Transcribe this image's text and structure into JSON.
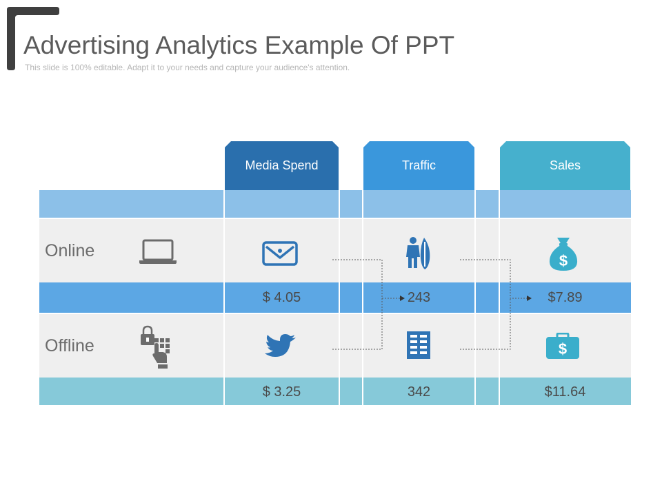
{
  "slide": {
    "title": "Advertising Analytics Example Of PPT",
    "subtitle": "This slide is 100% editable. Adapt it to your needs and capture your audience's attention."
  },
  "columns": {
    "media_spend": "Media Spend",
    "traffic": "Traffic",
    "sales": "Sales"
  },
  "rows": {
    "online": {
      "label": "Online",
      "media_spend": "$ 4.05",
      "traffic": "243",
      "sales": "$7.89"
    },
    "offline": {
      "label": "Offline",
      "media_spend": "$ 3.25",
      "traffic": "342",
      "sales": "$11.64"
    }
  },
  "colors": {
    "media_header": "#2a6fad",
    "traffic_header": "#3a97dc",
    "sales_header": "#46b0cd",
    "icon_blue": "#2f74b5",
    "icon_teal": "#3aaecb",
    "icon_gray": "#6b6b6b"
  },
  "icons": {
    "online_channel": "laptop-icon",
    "offline_channel": "lock-keypad-icon",
    "online_media": "envelope-icon",
    "offline_media": "twitter-bird-icon",
    "online_traffic": "person-surfboard-icon",
    "offline_traffic": "building-icon",
    "online_sales": "money-bag-icon",
    "offline_sales": "briefcase-dollar-icon"
  }
}
